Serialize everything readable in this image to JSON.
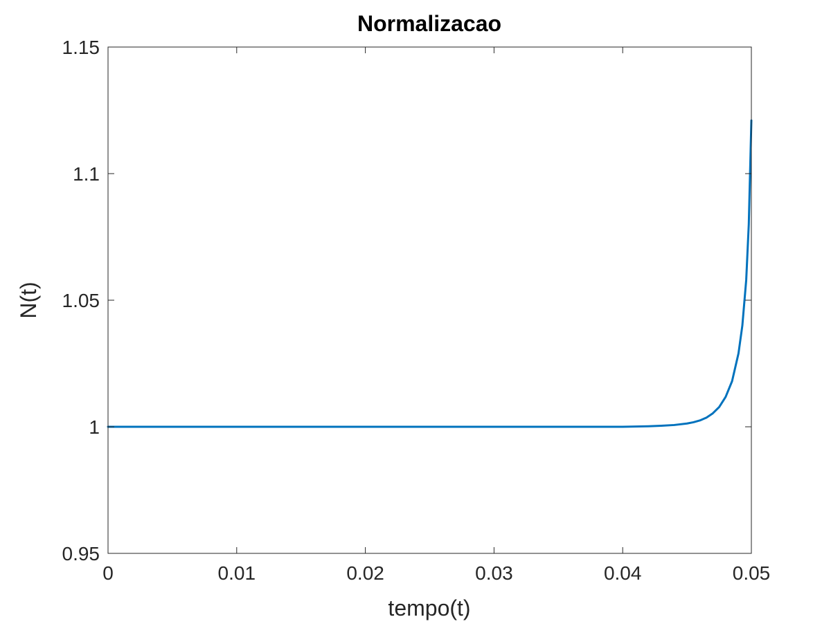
{
  "chart_data": {
    "type": "line",
    "title": "Normalizacao",
    "xlabel": "tempo(t)",
    "ylabel": "N(t)",
    "xlim": [
      0,
      0.05
    ],
    "ylim": [
      0.95,
      1.15
    ],
    "xticks": [
      0,
      0.01,
      0.02,
      0.03,
      0.04,
      0.05
    ],
    "xtick_labels": [
      "0",
      "0.01",
      "0.02",
      "0.03",
      "0.04",
      "0.05"
    ],
    "yticks": [
      0.95,
      1.0,
      1.05,
      1.1,
      1.15
    ],
    "ytick_labels": [
      "0.95",
      "1",
      "1.05",
      "1.1",
      "1.15"
    ],
    "grid": false,
    "series": [
      {
        "color": "#0072BD",
        "x": [
          0,
          0.01,
          0.02,
          0.03,
          0.04,
          0.042,
          0.043,
          0.044,
          0.045,
          0.0455,
          0.046,
          0.0465,
          0.047,
          0.0475,
          0.048,
          0.0485,
          0.049,
          0.0493,
          0.0496,
          0.0498,
          0.05
        ],
        "y": [
          1.0,
          1.0,
          1.0,
          1.0,
          1.0,
          1.0002,
          1.0004,
          1.0007,
          1.0013,
          1.0018,
          1.0025,
          1.0036,
          1.0053,
          1.0078,
          1.0118,
          1.018,
          1.029,
          1.04,
          1.058,
          1.08,
          1.121
        ]
      }
    ]
  }
}
